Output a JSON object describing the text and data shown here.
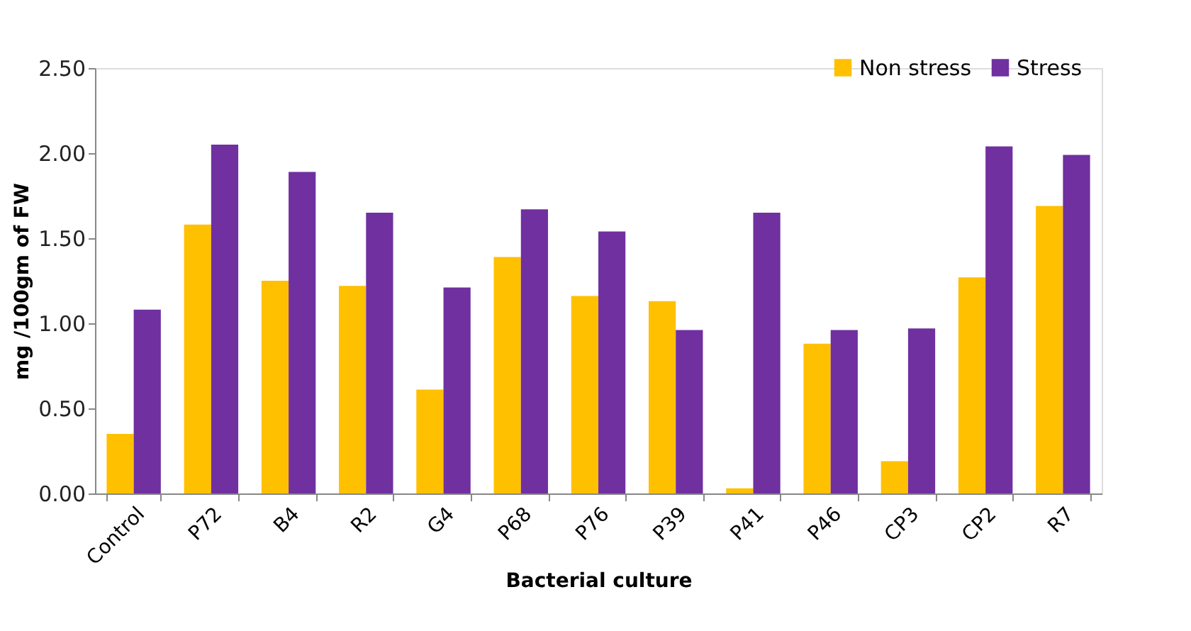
{
  "chart_data": {
    "type": "bar",
    "xlabel": "Bacterial culture",
    "ylabel": "mg /100gm of FW",
    "categories": [
      "Control",
      "P72",
      "B4",
      "R2",
      "G4",
      "P68",
      "P76",
      "P39",
      "P41",
      "P46",
      "CP3",
      "CP2",
      "R7"
    ],
    "series": [
      {
        "name": "Non stress",
        "color": "#ffc000",
        "values": [
          0.35,
          1.58,
          1.25,
          1.22,
          0.61,
          1.39,
          1.16,
          1.13,
          0.03,
          0.88,
          0.19,
          1.27,
          1.69
        ]
      },
      {
        "name": "Stress",
        "color": "#7030a0",
        "values": [
          1.08,
          2.05,
          1.89,
          1.65,
          1.21,
          1.67,
          1.54,
          0.96,
          1.65,
          0.96,
          0.97,
          2.04,
          1.99
        ]
      }
    ],
    "ylim": [
      0,
      2.5
    ],
    "yticks": [
      {
        "value": 0,
        "label": "0.00"
      },
      {
        "value": 0.5,
        "label": "0.50"
      },
      {
        "value": 1,
        "label": "1.00"
      },
      {
        "value": 1.5,
        "label": "1.50"
      },
      {
        "value": 2,
        "label": "2.00"
      },
      {
        "value": 2.5,
        "label": "2.50"
      }
    ],
    "grid": false,
    "legend": "top right"
  }
}
